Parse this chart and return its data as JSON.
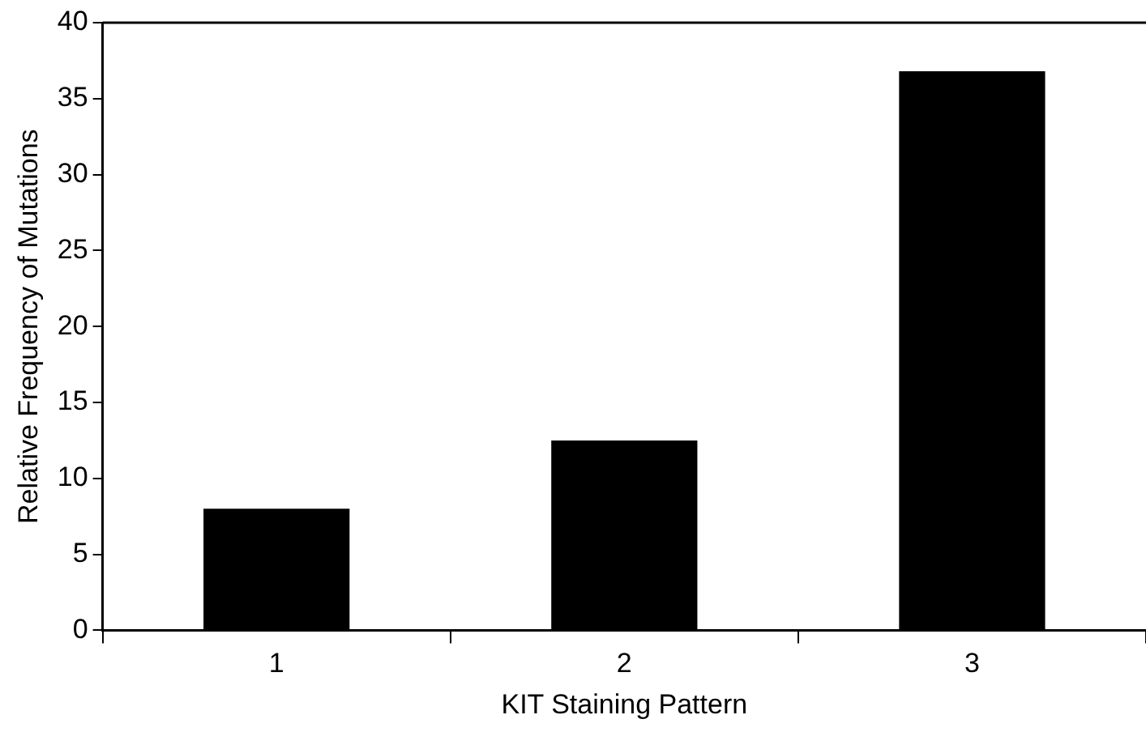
{
  "chart_data": {
    "type": "bar",
    "xlabel": "KIT Staining Pattern",
    "ylabel": "Relative Frequency of Mutations",
    "categories": [
      "1",
      "2",
      "3"
    ],
    "values": [
      8,
      12.5,
      36.8
    ],
    "color": "#000000",
    "ylim": [
      0,
      40
    ],
    "yticks": [
      0,
      5,
      10,
      15,
      20,
      25,
      30,
      35,
      40
    ],
    "grid": false,
    "legend": false
  }
}
